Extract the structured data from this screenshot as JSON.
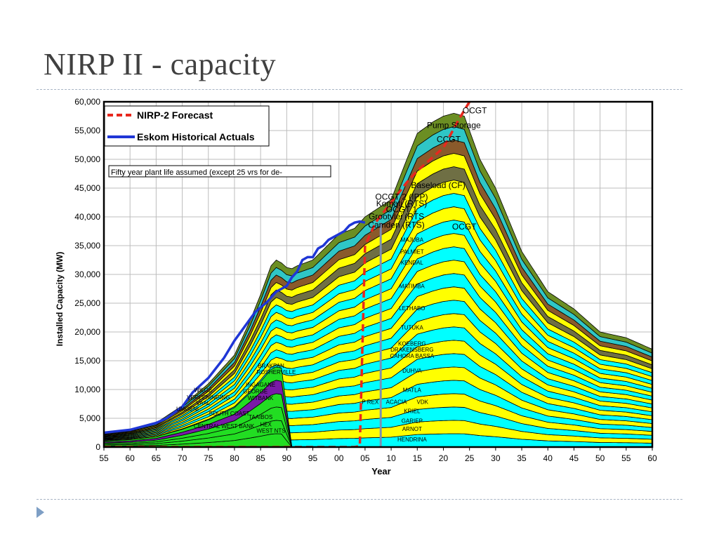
{
  "slide": {
    "title": "NIRP II - capacity"
  },
  "chart_data": {
    "type": "area",
    "xlabel": "Year",
    "ylabel": "Installed Capacity (MW)",
    "x_ticks": [
      "55",
      "60",
      "65",
      "70",
      "75",
      "80",
      "85",
      "90",
      "95",
      "00",
      "05",
      "10",
      "15",
      "20",
      "25",
      "30",
      "35",
      "40",
      "45",
      "50",
      "55",
      "60"
    ],
    "x_range": [
      1955,
      2060
    ],
    "ylim": [
      0,
      60000
    ],
    "y_ticks": [
      0,
      5000,
      10000,
      15000,
      20000,
      25000,
      30000,
      35000,
      40000,
      45000,
      50000,
      55000,
      60000
    ],
    "y_tick_labels": [
      "0",
      "5,000",
      "10,000",
      "15,000",
      "20,000",
      "25,000",
      "30,000",
      "35,000",
      "40,000",
      "45,000",
      "50,000",
      "55,000",
      "60,000"
    ],
    "grid": true,
    "legend_position": "top-left",
    "legend": [
      {
        "label": "NIRP-2 Forecast",
        "color": "#e8281e",
        "style": "dashed"
      },
      {
        "label": "Eskom Historical Actuals",
        "color": "#1f36d6",
        "style": "solid"
      }
    ],
    "note": "Fifty year plant life assumed (except 25 vrs for de-",
    "marker_year": 2008,
    "series": [
      {
        "name": "Eskom Historical Actuals",
        "x": [
          1955,
          1960,
          1965,
          1967,
          1970,
          1972,
          1975,
          1978,
          1980,
          1982,
          1984,
          1986,
          1988,
          1990,
          1991,
          1992,
          1993,
          1994,
          1995,
          1996,
          1997,
          1998,
          1999,
          2000,
          2001,
          2002,
          2003,
          2004,
          2005
        ],
        "y": [
          2500,
          3000,
          4200,
          5000,
          7000,
          9500,
          12000,
          15500,
          18500,
          21000,
          23500,
          25000,
          27000,
          28000,
          29500,
          30500,
          32500,
          33000,
          33000,
          34500,
          35000,
          36000,
          36500,
          37000,
          37500,
          38500,
          39000,
          39200,
          39000
        ]
      },
      {
        "name": "NIRP-2 Forecast",
        "x": [
          1955,
          1990,
          2003,
          2004,
          2005,
          2007,
          2010,
          2013,
          2015,
          2020,
          2023,
          2025
        ],
        "y": [
          0,
          0,
          0,
          200,
          35000,
          39000,
          42500,
          46000,
          48000,
          52000,
          57000,
          60000
        ]
      }
    ],
    "stack_envelope": {
      "x": [
        1955,
        1960,
        1965,
        1970,
        1975,
        1980,
        1983,
        1985,
        1987,
        1988,
        1989,
        1990,
        1991,
        1992,
        1995,
        2000,
        2003,
        2005,
        2010,
        2013,
        2015,
        2018,
        2020,
        2022,
        2024,
        2025,
        2027,
        2030,
        2035,
        2040,
        2045,
        2050,
        2055,
        2060
      ],
      "y": [
        2500,
        3000,
        4200,
        7200,
        11000,
        16000,
        22000,
        26500,
        31500,
        32500,
        32000,
        31200,
        31000,
        31500,
        32500,
        37000,
        38000,
        40000,
        43000,
        50000,
        54500,
        56500,
        57500,
        58000,
        57500,
        55000,
        50000,
        45000,
        34000,
        27000,
        24000,
        20000,
        19000,
        17000
      ]
    },
    "band_labels": [
      {
        "label": "OCGT",
        "x": 2026,
        "y": 58000
      },
      {
        "label": "Pump Storage",
        "x": 2022,
        "y": 55400
      },
      {
        "label": "CCGT",
        "x": 2021,
        "y": 53000
      },
      {
        "label": "Baseload (CF)",
        "x": 2019,
        "y": 45000
      },
      {
        "label": "OCGT 2 (IPP)",
        "x": 2012,
        "y": 43000
      },
      {
        "label": "Komati (RTS)",
        "x": 2012,
        "y": 41800
      },
      {
        "label": "OCGT 1",
        "x": 2012,
        "y": 40800
      },
      {
        "label": "Grootvlei (RTS",
        "x": 2011,
        "y": 39600
      },
      {
        "label": "Camden (RTS)",
        "x": 2011,
        "y": 38100
      },
      {
        "label": "OCGT",
        "x": 2024,
        "y": 37800
      },
      {
        "label": "MAJUBA",
        "x": 2014,
        "y": 35700
      },
      {
        "label": "PALMIET",
        "x": 2014,
        "y": 33600
      },
      {
        "label": "KENDAL",
        "x": 2014,
        "y": 31700
      },
      {
        "label": "MATIMBA",
        "x": 2014,
        "y": 27600
      },
      {
        "label": "LETHABO",
        "x": 2014,
        "y": 23800
      },
      {
        "label": "TUTUKA",
        "x": 2014,
        "y": 20400
      },
      {
        "label": "KOEBERG",
        "x": 2014,
        "y": 17600
      },
      {
        "label": "DRAKENSBERG",
        "x": 2014,
        "y": 16600
      },
      {
        "label": "CAHORA BASSA",
        "x": 2014,
        "y": 15500
      },
      {
        "label": "DUHVA",
        "x": 2014,
        "y": 12900
      },
      {
        "label": "MATLA",
        "x": 2014,
        "y": 9600
      },
      {
        "label": "P REX",
        "x": 2006,
        "y": 7500
      },
      {
        "label": "ACACIA",
        "x": 2011,
        "y": 7500
      },
      {
        "label": "VDK",
        "x": 2016,
        "y": 7500
      },
      {
        "label": "KRIEL",
        "x": 2014,
        "y": 5900
      },
      {
        "label": "GARIEP",
        "x": 2014,
        "y": 4200
      },
      {
        "label": "ARNOT",
        "x": 2014,
        "y": 2800
      },
      {
        "label": "HENDRINA",
        "x": 2014,
        "y": 1000
      },
      {
        "label": "BRAKPAN",
        "x": 1987,
        "y": 13800
      },
      {
        "label": "ROSHERVILLE",
        "x": 1988,
        "y": 12700
      },
      {
        "label": "INGAGANE",
        "x": 1985,
        "y": 10500
      },
      {
        "label": "GEORGE",
        "x": 1984,
        "y": 9300
      },
      {
        "label": "WITBANK",
        "x": 1985,
        "y": 8200
      },
      {
        "label": "WILGE",
        "x": 1974,
        "y": 9600
      },
      {
        "label": "VEREENINGING",
        "x": 1975,
        "y": 8300
      },
      {
        "label": "VAAL",
        "x": 1974,
        "y": 7300
      },
      {
        "label": "UMGENI",
        "x": 1971,
        "y": 6300
      },
      {
        "label": "SOUTH COAST",
        "x": 1979,
        "y": 5500
      },
      {
        "label": "TAAIBOS",
        "x": 1985,
        "y": 4900
      },
      {
        "label": "CENTRAL WEST BANK",
        "x": 1978,
        "y": 3300
      },
      {
        "label": "HEX",
        "x": 1986,
        "y": 3600
      },
      {
        "label": "WEST NTS",
        "x": 1987,
        "y": 2500
      }
    ]
  }
}
